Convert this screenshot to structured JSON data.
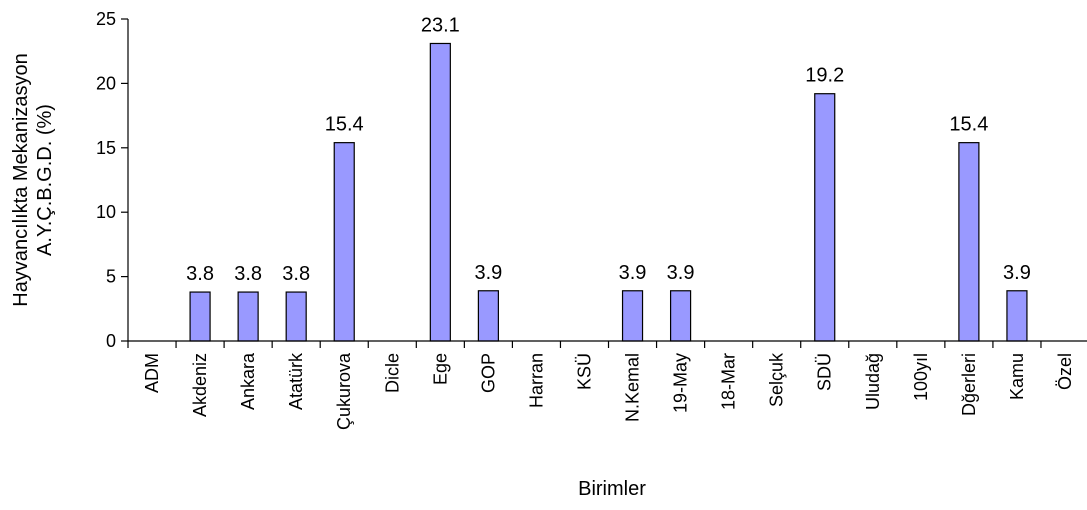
{
  "chart_data": {
    "type": "bar",
    "title": "",
    "xlabel": "Birimler",
    "ylabel_lines": [
      "Hayvancılıkta Mekanizasyon",
      "A.Y.Ç.B.G.D. (%)"
    ],
    "ylim": [
      0,
      25
    ],
    "yticks": [
      0,
      5,
      10,
      15,
      20,
      25
    ],
    "grid": false,
    "legend": "none",
    "categories": [
      "ADM",
      "Akdeniz",
      "Ankara",
      "Atatürk",
      "Çukurova",
      "Dicle",
      "Ege",
      "GOP",
      "Harran",
      "KSÜ",
      "N.Kemal",
      "19-May",
      "18-Mar",
      "Selçuk",
      "SDÜ",
      "Uludağ",
      "100yıl",
      "Dğerleri",
      "Kamu",
      "Özel"
    ],
    "values": [
      0,
      3.8,
      3.8,
      3.8,
      15.4,
      0,
      23.1,
      3.9,
      0,
      0,
      3.9,
      3.9,
      0,
      0,
      19.2,
      0,
      0,
      15.4,
      3.9,
      0
    ],
    "data_labels": [
      "",
      "3.8",
      "3.8",
      "3.8",
      "15.4",
      "",
      "23.1",
      "3.9",
      "",
      "",
      "3.9",
      "3.9",
      "",
      "",
      "19.2",
      "",
      "",
      "15.4",
      "3.9",
      ""
    ],
    "bar_color": "#9999ff",
    "bar_stroke": "#000000"
  }
}
